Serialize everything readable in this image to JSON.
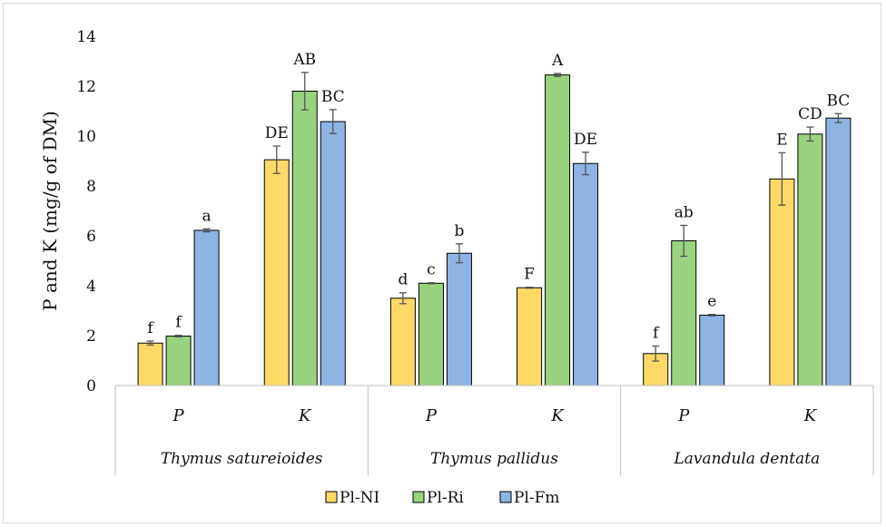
{
  "chart_data": {
    "type": "bar",
    "ylabel": "P and K (mg/g of DM)",
    "ylim": [
      0,
      14
    ],
    "yticks": [
      0,
      2,
      4,
      6,
      8,
      10,
      12,
      14
    ],
    "groups": [
      "Thymus satureioides",
      "Thymus pallidus",
      "Lavandula dentata"
    ],
    "categories": [
      "P",
      "K",
      "P",
      "K",
      "P",
      "K"
    ],
    "series": [
      {
        "name": "Pl-NI",
        "color": "#ffd966",
        "values": [
          1.7,
          9.05,
          3.5,
          3.92,
          1.28,
          8.28
        ],
        "errors": [
          0.08,
          0.55,
          0.22,
          0.02,
          0.3,
          1.05
        ],
        "labels": [
          "f",
          "DE",
          "d",
          "F",
          "f",
          "E"
        ]
      },
      {
        "name": "Pl-Ri",
        "color": "#99d37f",
        "values": [
          1.98,
          11.8,
          4.1,
          12.45,
          5.8,
          10.08
        ],
        "errors": [
          0.03,
          0.75,
          0.02,
          0.06,
          0.62,
          0.28
        ],
        "labels": [
          "f",
          "AB",
          "c",
          "A",
          "ab",
          "CD"
        ]
      },
      {
        "name": "Pl-Fm",
        "color": "#8eb4e3",
        "values": [
          6.22,
          10.58,
          5.3,
          8.9,
          2.82,
          10.72
        ],
        "errors": [
          0.06,
          0.48,
          0.38,
          0.45,
          0.03,
          0.18
        ],
        "labels": [
          "a",
          "BC",
          "b",
          "DE",
          "e",
          "BC"
        ]
      }
    ],
    "grid": false,
    "legend": "bottom"
  }
}
